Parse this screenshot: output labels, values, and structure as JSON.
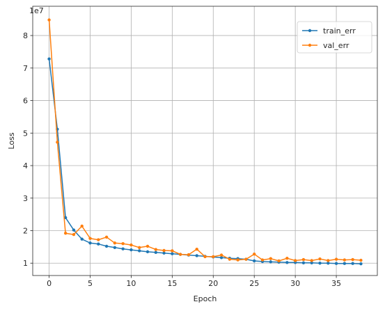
{
  "chart_data": {
    "type": "line",
    "xlabel": "Epoch",
    "ylabel": "Loss",
    "y_scale_label": "1e7",
    "xlim": [
      -2,
      40
    ],
    "ylim": [
      0.62,
      8.9
    ],
    "x_ticks": [
      0,
      5,
      10,
      15,
      20,
      25,
      30,
      35
    ],
    "y_ticks": [
      1,
      2,
      3,
      4,
      5,
      6,
      7,
      8
    ],
    "grid": true,
    "legend_position": "top-right",
    "x": [
      0,
      1,
      2,
      3,
      4,
      5,
      6,
      7,
      8,
      9,
      10,
      11,
      12,
      13,
      14,
      15,
      16,
      17,
      18,
      19,
      20,
      21,
      22,
      23,
      24,
      25,
      26,
      27,
      28,
      29,
      30,
      31,
      32,
      33,
      34,
      35,
      36,
      37,
      38
    ],
    "series": [
      {
        "name": "train_err",
        "color": "#1f77b4",
        "values": [
          7.28,
          5.12,
          2.4,
          2.02,
          1.74,
          1.62,
          1.59,
          1.52,
          1.48,
          1.44,
          1.41,
          1.38,
          1.35,
          1.33,
          1.31,
          1.29,
          1.27,
          1.25,
          1.23,
          1.21,
          1.19,
          1.17,
          1.15,
          1.14,
          1.12,
          1.07,
          1.05,
          1.04,
          1.03,
          1.02,
          1.02,
          1.01,
          1.01,
          1.0,
          1.0,
          0.99,
          0.99,
          0.99,
          0.98
        ]
      },
      {
        "name": "val_err",
        "color": "#ff7f0e",
        "values": [
          8.48,
          4.72,
          1.92,
          1.88,
          2.14,
          1.76,
          1.72,
          1.8,
          1.62,
          1.6,
          1.56,
          1.48,
          1.52,
          1.42,
          1.39,
          1.38,
          1.27,
          1.26,
          1.43,
          1.2,
          1.2,
          1.25,
          1.12,
          1.1,
          1.12,
          1.28,
          1.1,
          1.14,
          1.07,
          1.15,
          1.08,
          1.11,
          1.08,
          1.13,
          1.08,
          1.12,
          1.1,
          1.11,
          1.09
        ]
      }
    ]
  }
}
